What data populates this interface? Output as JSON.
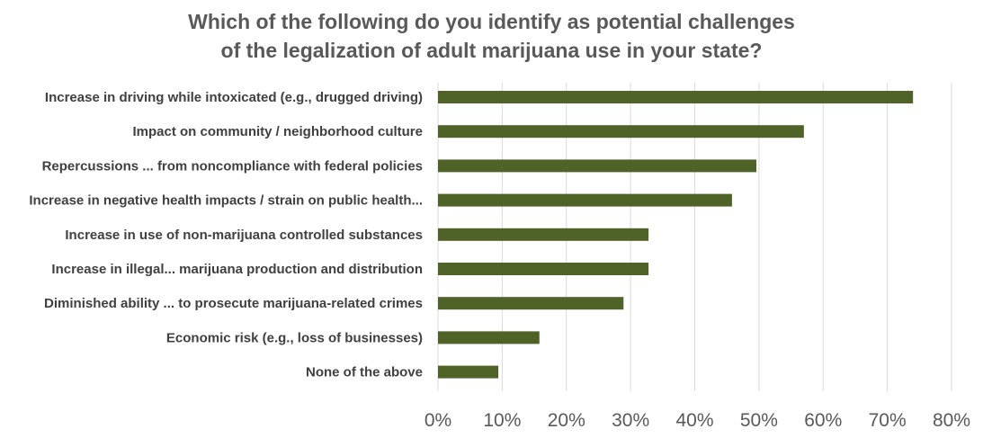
{
  "chart_data": {
    "type": "bar",
    "orientation": "horizontal",
    "title_lines": [
      "Which of the following do you identify as potential challenges",
      "of the legalization of adult marijuana use in your state?"
    ],
    "categories": [
      "Increase in driving while intoxicated (e.g., drugged driving)",
      "Impact on community / neighborhood culture",
      "Repercussions ... from noncompliance with federal policies",
      "Increase in negative health impacts / strain on public health...",
      "Increase in use of non-marijuana controlled substances",
      "Increase in illegal... marijuana production and distribution",
      "Diminished ability ... to prosecute marijuana-related crimes",
      "Economic risk (e.g., loss of businesses)",
      "None of the above"
    ],
    "values": [
      74,
      57,
      49.6,
      45.8,
      32.8,
      32.8,
      28.9,
      15.8,
      9.4
    ],
    "xlim": [
      0,
      80
    ],
    "x_ticks": [
      "0%",
      "10%",
      "20%",
      "30%",
      "40%",
      "50%",
      "60%",
      "70%",
      "80%"
    ],
    "grid": true,
    "bar_color": "#4F6228",
    "grid_color": "#D9D9D9"
  }
}
